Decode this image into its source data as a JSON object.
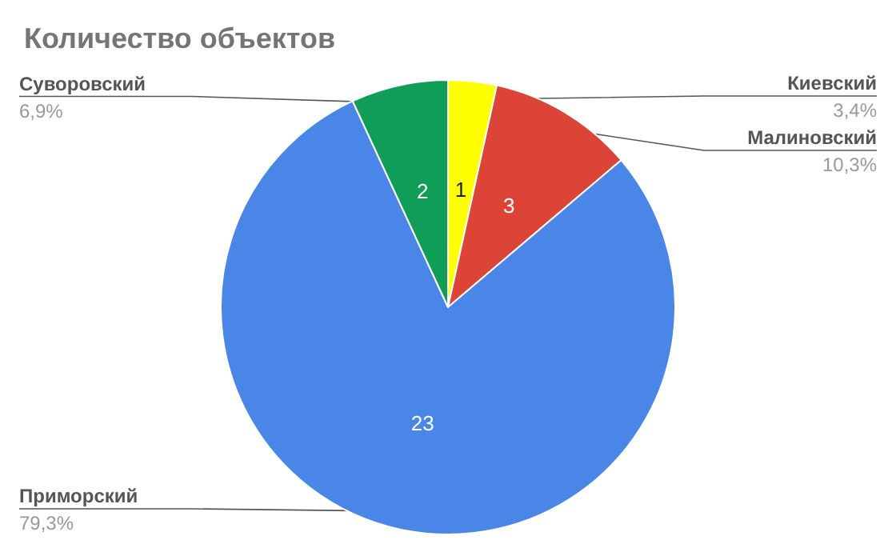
{
  "chart_data": {
    "type": "pie",
    "title": "Количество объектов",
    "categories": [
      "Киевский",
      "Малиновский",
      "Приморский",
      "Суворовский"
    ],
    "values": [
      1,
      3,
      23,
      2
    ],
    "colors": [
      "#ffff00",
      "#db4437",
      "#4a86e8",
      "#0f9d58"
    ],
    "annotations": [
      "3,4%",
      "10,3%",
      "79,3%",
      "6,9%"
    ],
    "data_labels": true,
    "legend": false
  }
}
